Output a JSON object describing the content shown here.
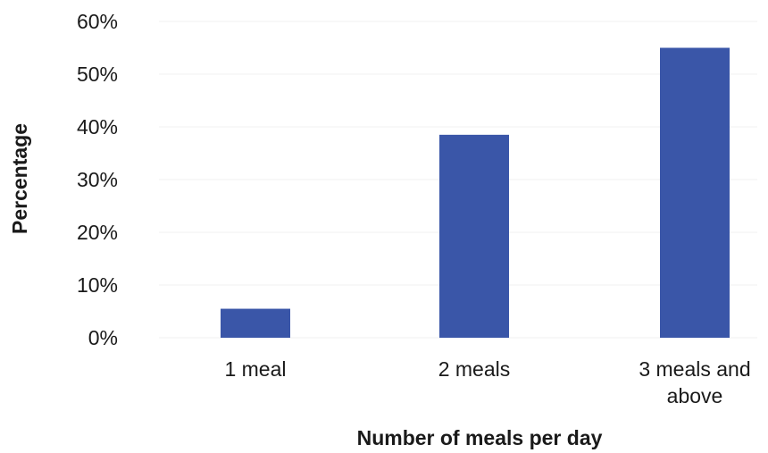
{
  "chart_data": {
    "type": "bar",
    "categories": [
      "1 meal",
      "2 meals",
      "3 meals and above"
    ],
    "category_lines": [
      [
        "1 meal"
      ],
      [
        "2 meals"
      ],
      [
        "3 meals and",
        "above"
      ]
    ],
    "values": [
      5.5,
      38.5,
      55
    ],
    "value_unit": "%",
    "xlabel": "Number of meals per day",
    "ylabel": "Percentage",
    "ylim": [
      0,
      60
    ],
    "yticks": [
      "0%",
      "10%",
      "20%",
      "30%",
      "40%",
      "50%",
      "60%"
    ],
    "grid": true,
    "legend": "none",
    "colors": {
      "bar": "#3a56a8",
      "text": "#1a1a1a",
      "grid": "#f1f1f1"
    }
  }
}
